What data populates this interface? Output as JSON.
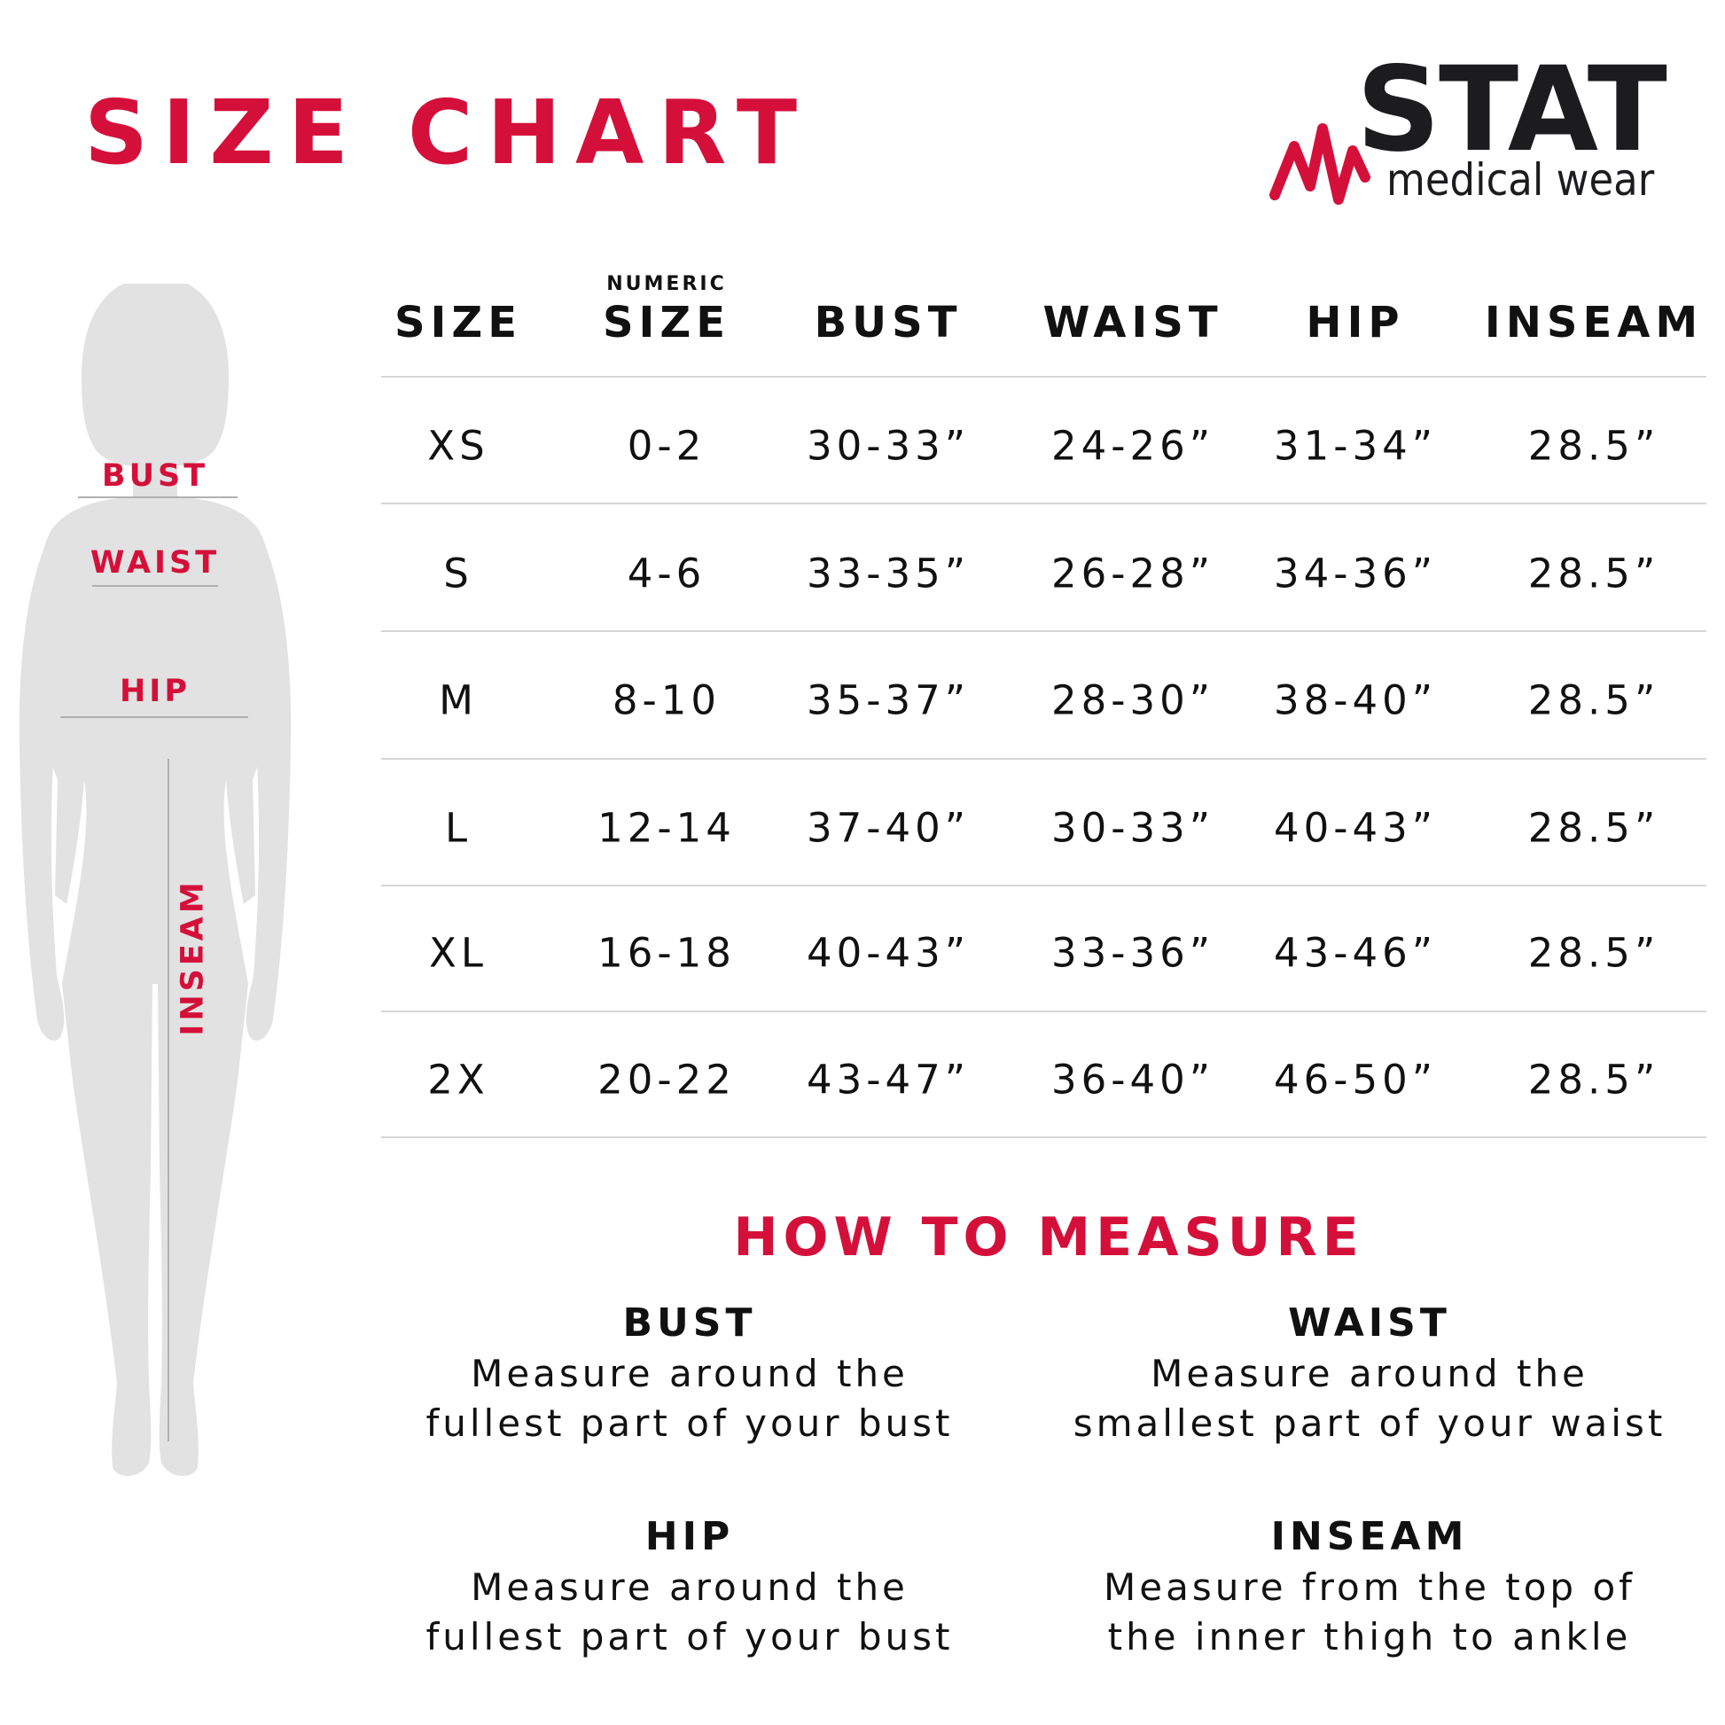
{
  "title": "SIZE CHART",
  "brand": {
    "name": "STAT",
    "tagline": "medical wear",
    "accent": "#d4103a"
  },
  "figure": {
    "labels": {
      "bust": "BUST",
      "waist": "WAIST",
      "hip": "HIP",
      "inseam": "INSEAM"
    }
  },
  "table": {
    "columns": [
      {
        "label": "SIZE",
        "sublabel": ""
      },
      {
        "label": "SIZE",
        "sublabel": "NUMERIC"
      },
      {
        "label": "BUST",
        "sublabel": ""
      },
      {
        "label": "WAIST",
        "sublabel": ""
      },
      {
        "label": "HIP",
        "sublabel": ""
      },
      {
        "label": "INSEAM",
        "sublabel": ""
      }
    ],
    "rows": [
      [
        "XS",
        "0-2",
        "30-33”",
        "24-26”",
        "31-34”",
        "28.5”"
      ],
      [
        "S",
        "4-6",
        "33-35”",
        "26-28”",
        "34-36”",
        "28.5”"
      ],
      [
        "M",
        "8-10",
        "35-37”",
        "28-30”",
        "38-40”",
        "28.5”"
      ],
      [
        "L",
        "12-14",
        "37-40”",
        "30-33”",
        "40-43”",
        "28.5”"
      ],
      [
        "XL",
        "16-18",
        "40-43”",
        "33-36”",
        "43-46”",
        "28.5”"
      ],
      [
        "2X",
        "20-22",
        "43-47”",
        "36-40”",
        "46-50”",
        "28.5”"
      ]
    ]
  },
  "how_to_measure": {
    "title": "HOW TO MEASURE",
    "bust": {
      "heading": "BUST",
      "line1": "Measure around the",
      "line2": "fullest part of your bust"
    },
    "waist": {
      "heading": "WAIST",
      "line1": "Measure around the",
      "line2": "smallest part of your waist"
    },
    "hip": {
      "heading": "HIP",
      "line1": "Measure around the",
      "line2": "fullest part of your bust"
    },
    "inseam": {
      "heading": "INSEAM",
      "line1": "Measure from the top of",
      "line2": "the inner thigh to ankle"
    }
  }
}
